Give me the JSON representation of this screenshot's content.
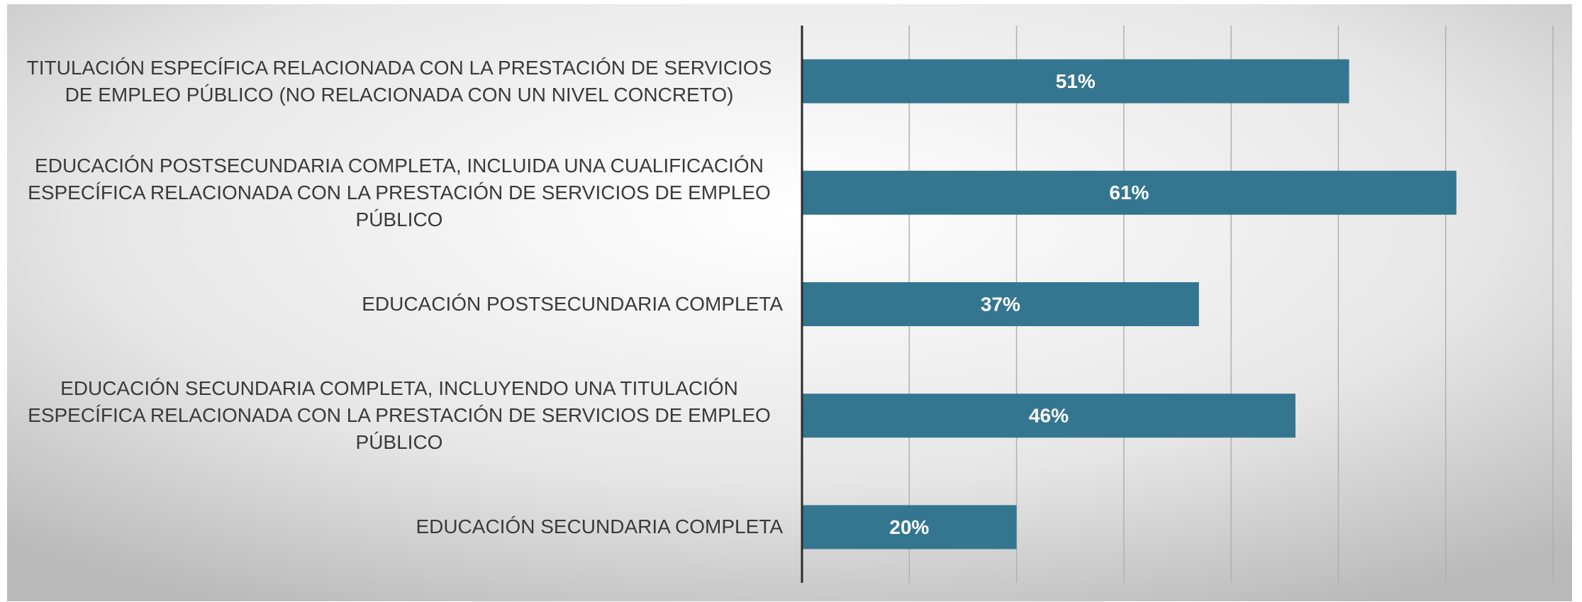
{
  "chart_data": {
    "type": "barh",
    "categories": [
      "TITULACIÓN ESPECÍFICA RELACIONADA CON LA PRESTACIÓN DE SERVICIOS DE EMPLEO PÚBLICO (NO RELACIONADA CON UN NIVEL CONCRETO)",
      "EDUCACIÓN POSTSECUNDARIA COMPLETA, INCLUIDA UNA CUALIFICACIÓN ESPECÍFICA RELACIONADA CON LA PRESTACIÓN DE SERVICIOS DE EMPLEO PÚBLICO",
      "EDUCACIÓN POSTSECUNDARIA COMPLETA",
      "EDUCACIÓN SECUNDARIA COMPLETA, INCLUYENDO UNA TITULACIÓN ESPECÍFICA RELACIONADA CON LA PRESTACIÓN DE SERVICIOS DE EMPLEO PÚBLICO",
      "EDUCACIÓN SECUNDARIA COMPLETA"
    ],
    "values": [
      51,
      61,
      37,
      46,
      20
    ],
    "value_labels": [
      "51%",
      "61%",
      "37%",
      "46%",
      "20%"
    ],
    "color": "#347690",
    "xlim": [
      0,
      70
    ],
    "xticks": [
      0,
      10,
      20,
      30,
      40,
      50,
      60,
      70
    ],
    "tick_labels": false,
    "grid": true
  }
}
